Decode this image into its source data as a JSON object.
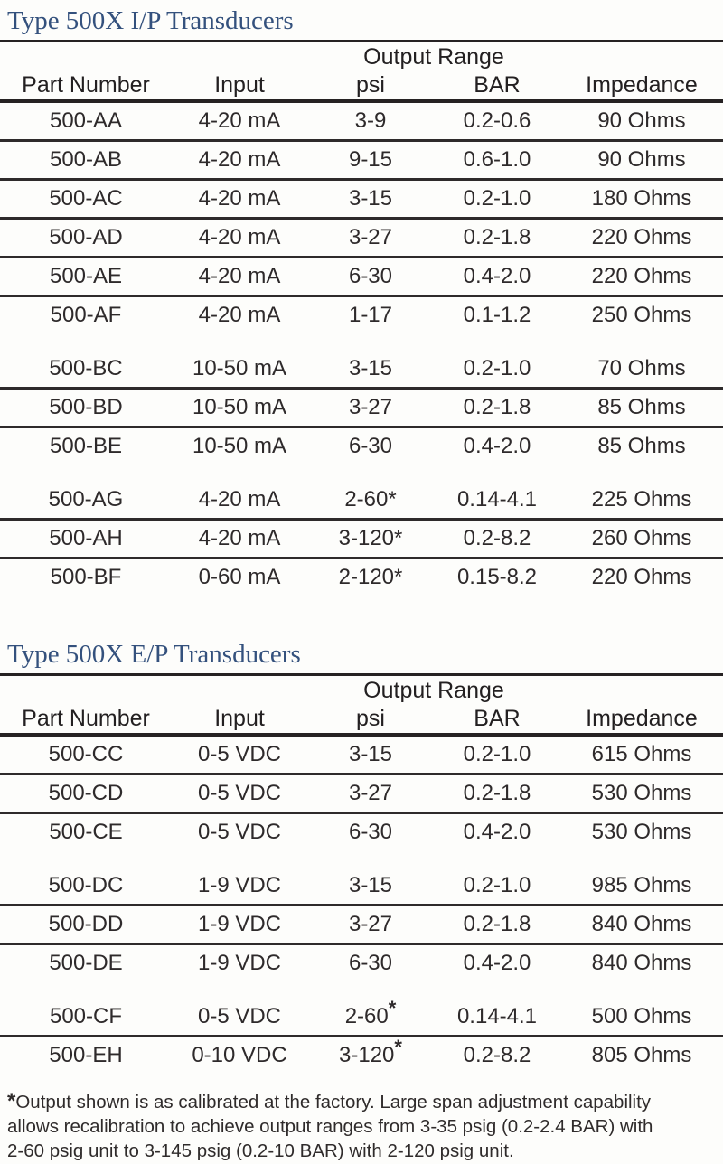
{
  "page": {
    "background": "#fdfdfb",
    "title_color": "#34517d",
    "text_color": "#2e2a2b",
    "rule_color": "#262223"
  },
  "tables": [
    {
      "title": "Type 500X I/P Transducers",
      "span_header": "Output Range",
      "columns": [
        "Part Number",
        "Input",
        "psi",
        "BAR",
        "Impedance"
      ],
      "star_superscript": false,
      "groups": [
        {
          "rows": [
            [
              "500-AA",
              "4-20 mA",
              "3-9",
              "0.2-0.6",
              "90 Ohms"
            ],
            [
              "500-AB",
              "4-20 mA",
              "9-15",
              "0.6-1.0",
              "90 Ohms"
            ],
            [
              "500-AC",
              "4-20 mA",
              "3-15",
              "0.2-1.0",
              "180 Ohms"
            ],
            [
              "500-AD",
              "4-20 mA",
              "3-27",
              "0.2-1.8",
              "220 Ohms"
            ],
            [
              "500-AE",
              "4-20 mA",
              "6-30",
              "0.4-2.0",
              "220 Ohms"
            ],
            [
              "500-AF",
              "4-20 mA",
              "1-17",
              "0.1-1.2",
              "250 Ohms"
            ]
          ]
        },
        {
          "rows": [
            [
              "500-BC",
              "10-50 mA",
              "3-15",
              "0.2-1.0",
              "70 Ohms"
            ],
            [
              "500-BD",
              "10-50 mA",
              "3-27",
              "0.2-1.8",
              "85 Ohms"
            ],
            [
              "500-BE",
              "10-50 mA",
              "6-30",
              "0.4-2.0",
              "85 Ohms"
            ]
          ]
        },
        {
          "rows": [
            [
              "500-AG",
              "4-20 mA",
              "2-60*",
              "0.14-4.1",
              "225 Ohms"
            ],
            [
              "500-AH",
              "4-20 mA",
              "3-120*",
              "0.2-8.2",
              "260 Ohms"
            ],
            [
              "500-BF",
              "0-60 mA",
              "2-120*",
              "0.15-8.2",
              "220 Ohms"
            ]
          ]
        }
      ]
    },
    {
      "title": "Type 500X E/P Transducers",
      "span_header": "Output Range",
      "columns": [
        "Part Number",
        "Input",
        "psi",
        "BAR",
        "Impedance"
      ],
      "star_superscript": true,
      "groups": [
        {
          "rows": [
            [
              "500-CC",
              "0-5 VDC",
              "3-15",
              "0.2-1.0",
              "615 Ohms"
            ],
            [
              "500-CD",
              "0-5 VDC",
              "3-27",
              "0.2-1.8",
              "530 Ohms"
            ],
            [
              "500-CE",
              "0-5 VDC",
              "6-30",
              "0.4-2.0",
              "530 Ohms"
            ]
          ]
        },
        {
          "rows": [
            [
              "500-DC",
              "1-9 VDC",
              "3-15",
              "0.2-1.0",
              "985 Ohms"
            ],
            [
              "500-DD",
              "1-9 VDC",
              "3-27",
              "0.2-1.8",
              "840 Ohms"
            ],
            [
              "500-DE",
              "1-9 VDC",
              "6-30",
              "0.4-2.0",
              "840 Ohms"
            ]
          ]
        },
        {
          "rows": [
            [
              "500-CF",
              "0-5 VDC",
              "2-60*",
              "0.14-4.1",
              "500 Ohms"
            ],
            [
              "500-EH",
              "0-10 VDC",
              "3-120*",
              "0.2-8.2",
              "805 Ohms"
            ]
          ]
        }
      ]
    }
  ],
  "footnote": {
    "star": "*",
    "lines": [
      "Output shown is as calibrated at the factory. Large span adjustment capability",
      "allows recalibration to achieve output ranges from 3-35 psig (0.2-2.4 BAR) with",
      "2-60 psig unit to 3-145 psig (0.2-10 BAR) with 2-120 psig unit."
    ]
  }
}
